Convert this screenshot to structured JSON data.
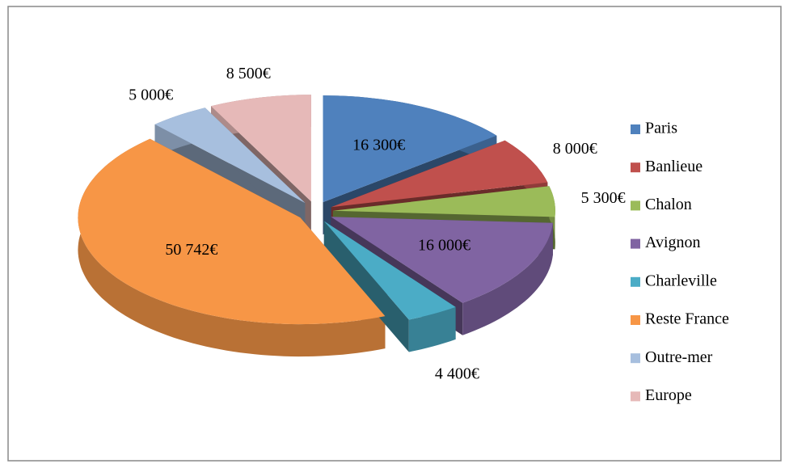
{
  "chart_data": {
    "type": "pie",
    "categories": [
      "Paris",
      "Banlieue",
      "Chalon",
      "Avignon",
      "Charleville",
      "Reste France",
      "Outre-mer",
      "Europe"
    ],
    "values": [
      16300,
      8000,
      5300,
      16000,
      4400,
      50742,
      5000,
      8500
    ],
    "value_labels": [
      "16 300€",
      "8 000€",
      "5 300€",
      "16 000€",
      "4 400€",
      "50 742€",
      "5 000€",
      "8 500€"
    ],
    "colors": [
      "#4f81bd",
      "#c0504d",
      "#9bbb59",
      "#8064a2",
      "#4bacc6",
      "#f79646",
      "#a7bfde",
      "#e6b9b8"
    ],
    "legend": "right"
  }
}
